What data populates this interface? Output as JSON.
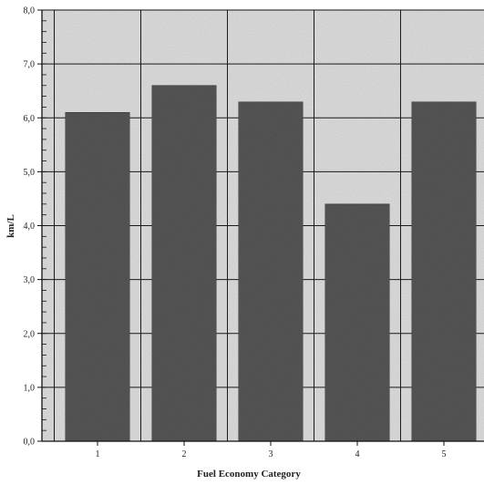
{
  "chart_data": {
    "type": "bar",
    "title": "",
    "xlabel": "Fuel Economy Category",
    "ylabel": "km/L",
    "categories": [
      "1",
      "2",
      "3",
      "4",
      "5"
    ],
    "values": [
      6.1,
      6.6,
      6.3,
      4.4,
      6.3
    ],
    "ylim": [
      0,
      8
    ],
    "yticks": [
      "0,0",
      "1,0",
      "2,0",
      "3,0",
      "4,0",
      "5,0",
      "6,0",
      "7,0",
      "8,0"
    ],
    "grid": true,
    "legend": "none",
    "colors": {
      "bar": "#555555",
      "background": "#dcdcdc",
      "grid": "#1a1a1a",
      "axis": "#111111"
    }
  }
}
